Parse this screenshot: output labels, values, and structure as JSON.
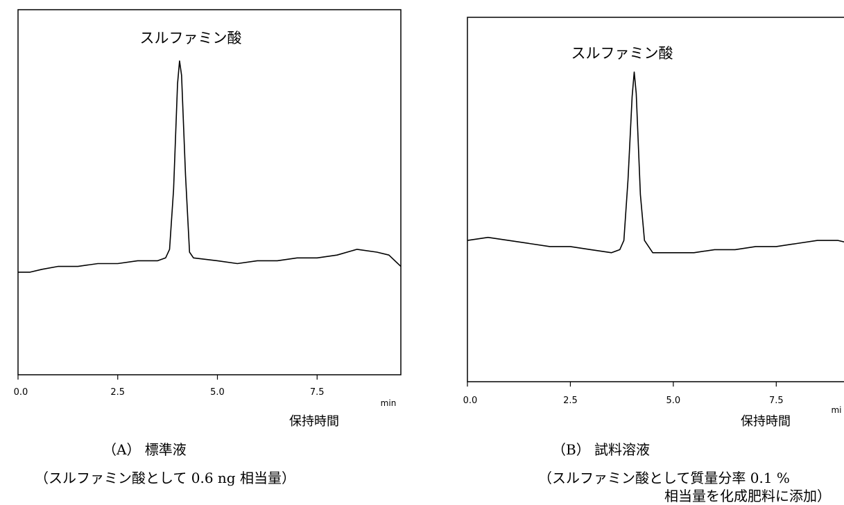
{
  "chart_data": [
    {
      "type": "line",
      "title": "",
      "annotation": "スルファミン酸",
      "x_unit": "min",
      "xlabel": "保持時間",
      "xlim": [
        0,
        9.6
      ],
      "xticks": [
        "0.0",
        "2.5",
        "5.0",
        "7.5"
      ],
      "grid": false,
      "caption": "（A） 標準液",
      "caption_note": "（スルファミン酸として 0.6 ng 相当量）",
      "series": [
        {
          "points": [
            [
              0.0,
              0.26
            ],
            [
              0.3,
              0.26
            ],
            [
              0.6,
              0.27
            ],
            [
              1.0,
              0.28
            ],
            [
              1.5,
              0.28
            ],
            [
              2.0,
              0.29
            ],
            [
              2.5,
              0.29
            ],
            [
              3.0,
              0.3
            ],
            [
              3.5,
              0.3
            ],
            [
              3.7,
              0.31
            ],
            [
              3.8,
              0.34
            ],
            [
              3.9,
              0.55
            ],
            [
              4.0,
              0.92
            ],
            [
              4.05,
              1.0
            ],
            [
              4.1,
              0.95
            ],
            [
              4.2,
              0.6
            ],
            [
              4.3,
              0.33
            ],
            [
              4.4,
              0.31
            ],
            [
              5.0,
              0.3
            ],
            [
              5.5,
              0.29
            ],
            [
              6.0,
              0.3
            ],
            [
              6.5,
              0.3
            ],
            [
              7.0,
              0.31
            ],
            [
              7.5,
              0.31
            ],
            [
              8.0,
              0.32
            ],
            [
              8.5,
              0.34
            ],
            [
              9.0,
              0.33
            ],
            [
              9.3,
              0.32
            ],
            [
              9.6,
              0.28
            ]
          ]
        }
      ]
    },
    {
      "type": "line",
      "title": "",
      "annotation": "スルファミン酸",
      "x_unit": "mi",
      "xlabel": "保持時間",
      "xlim": [
        0,
        9.6
      ],
      "xticks": [
        "0.0",
        "2.5",
        "5.0",
        "7.5"
      ],
      "grid": false,
      "caption": "（B） 試料溶液",
      "caption_note": "（スルファミン酸として質量分率 0.1 %",
      "caption_note_2": "相当量を化成肥料に添加）",
      "series": [
        {
          "points": [
            [
              0.0,
              0.45
            ],
            [
              0.5,
              0.46
            ],
            [
              1.0,
              0.45
            ],
            [
              1.5,
              0.44
            ],
            [
              2.0,
              0.43
            ],
            [
              2.5,
              0.43
            ],
            [
              3.0,
              0.42
            ],
            [
              3.5,
              0.41
            ],
            [
              3.7,
              0.42
            ],
            [
              3.8,
              0.45
            ],
            [
              3.9,
              0.65
            ],
            [
              4.0,
              0.92
            ],
            [
              4.05,
              1.0
            ],
            [
              4.1,
              0.93
            ],
            [
              4.2,
              0.6
            ],
            [
              4.3,
              0.45
            ],
            [
              4.5,
              0.41
            ],
            [
              5.0,
              0.41
            ],
            [
              5.5,
              0.41
            ],
            [
              6.0,
              0.42
            ],
            [
              6.5,
              0.42
            ],
            [
              7.0,
              0.43
            ],
            [
              7.5,
              0.43
            ],
            [
              8.0,
              0.44
            ],
            [
              8.5,
              0.45
            ],
            [
              9.0,
              0.45
            ],
            [
              9.3,
              0.44
            ],
            [
              9.6,
              0.44
            ]
          ]
        }
      ]
    }
  ]
}
